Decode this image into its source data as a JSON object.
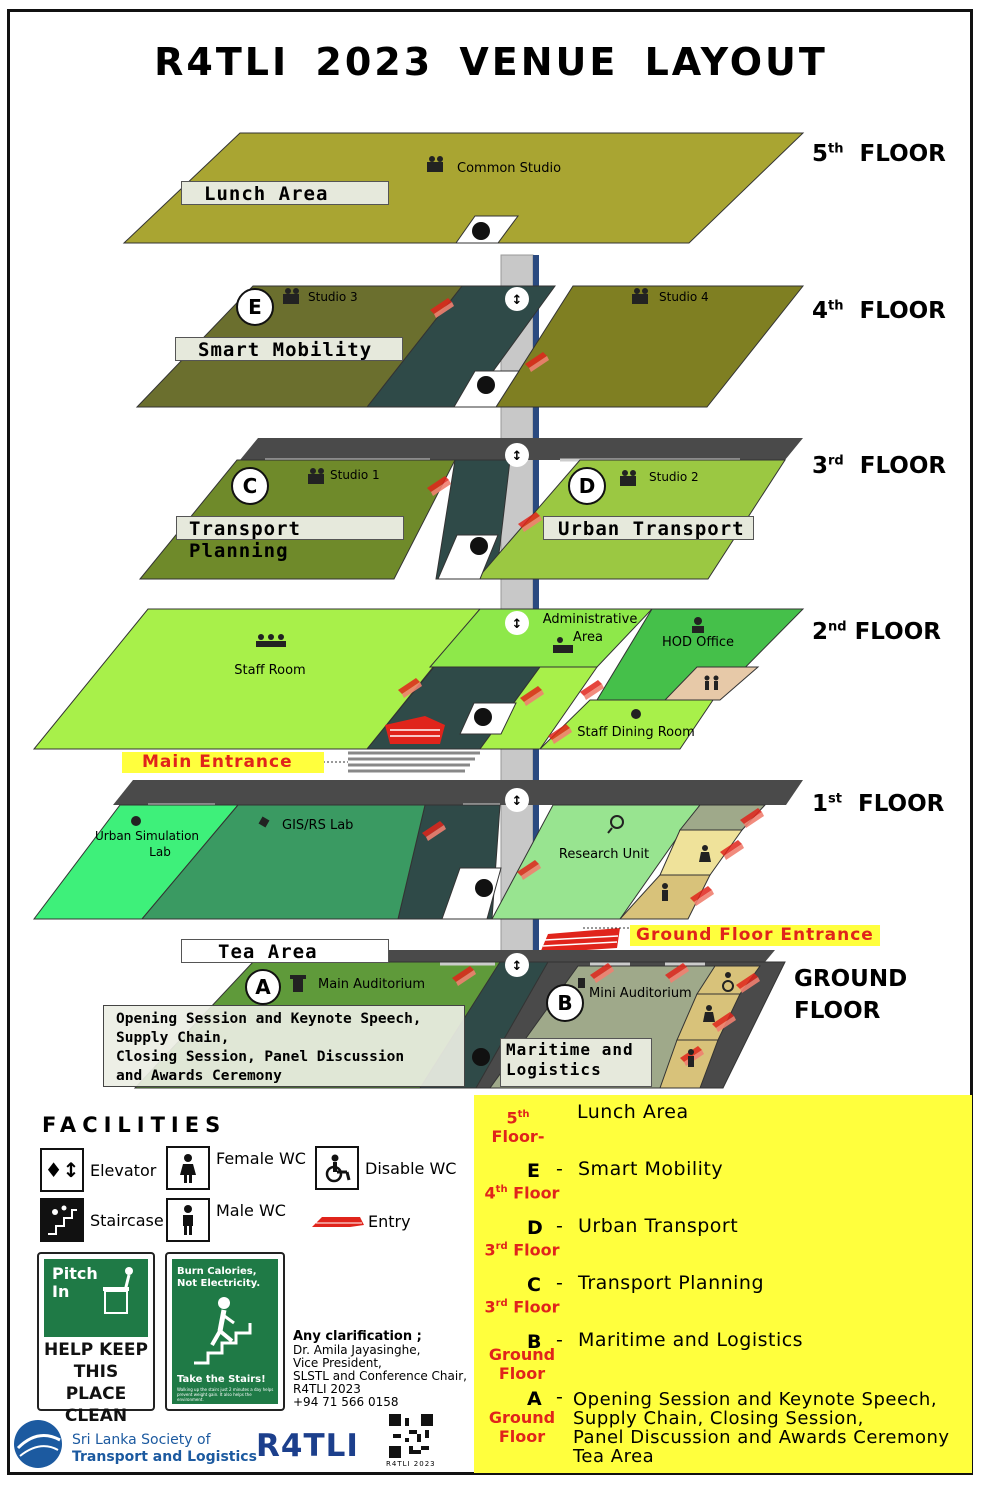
{
  "title": "R4TLI 2023  VENUE  LAYOUT",
  "floors": {
    "f5": {
      "num": "5",
      "sup": "th",
      "word": "FLOOR"
    },
    "f4": {
      "num": "4",
      "sup": "th",
      "word": "FLOOR"
    },
    "f3": {
      "num": "3",
      "sup": "rd",
      "word": "FLOOR"
    },
    "f2": {
      "num": "2",
      "sup": "nd",
      "word": "FLOOR"
    },
    "f1": {
      "num": "1",
      "sup": "st",
      "word": "FLOOR"
    },
    "g": {
      "line1": "GROUND",
      "line2": "FLOOR"
    }
  },
  "rooms": {
    "common_studio": "Common Studio",
    "studio3": "Studio 3",
    "studio4": "Studio 4",
    "studio1": "Studio 1",
    "studio2": "Studio 2",
    "staff_room": "Staff Room",
    "admin_l1": "Administrative",
    "admin_l2": "Area",
    "hod": "HOD Office",
    "dining": "Staff Dining Room",
    "urban_sim_l1": "Urban Simulation",
    "urban_sim_l2": "Lab",
    "gis": "GIS/RS Lab",
    "research": "Research Unit",
    "main_aud": "Main Auditorium",
    "mini_aud": "Mini Auditorium"
  },
  "area_boxes": {
    "lunch": "Lunch Area",
    "smart": "Smart Mobility",
    "transport_planning": "Transport Planning",
    "urban_transport": "Urban Transport",
    "tea": "Tea Area",
    "maritime": "Maritime and\nLogistics",
    "main_desc": "Opening Session and Keynote Speech,\nSupply Chain,\nClosing Session, Panel Discussion\nand Awards Ceremony"
  },
  "markers": {
    "E": "E",
    "C": "C",
    "D": "D",
    "A": "A",
    "B": "B"
  },
  "entrances": {
    "main": "Main  Entrance",
    "ground": "Ground Floor Entrance"
  },
  "facilities": {
    "heading": "FACILITIES",
    "elevator": "Elevator",
    "female": "Female WC",
    "disable": "Disable WC",
    "stair": "Staircase",
    "male": "Male WC",
    "entry": "Entry"
  },
  "signs": {
    "pitch_l1": "Pitch",
    "pitch_l2": "In",
    "pitch_msg": "HELP KEEP\nTHIS PLACE\nCLEAN",
    "burn_l1": "Burn Calories,",
    "burn_l2": "Not Electricity.",
    "burn_take": "Take the Stairs!",
    "burn_fine": "Walking up the stairs just 2 minutes a day helps prevent weight gain. It also helps the environment."
  },
  "contact": {
    "heading": "Any clarification ;",
    "l1": "Dr. Amila Jayasinghe,",
    "l2": "Vice President,",
    "l3": "SLSTL and Conference Chair,",
    "l4": "R4TLI 2023",
    "l5": "+94 71 566 0158"
  },
  "footer": {
    "society_l1": "Sri Lanka Society of",
    "society_l2": "Transport and Logistics",
    "brand": "R4TLI",
    "qr_caption": "R4TLI 2023"
  },
  "legend": [
    {
      "floor_html": "<sup>th</sup>",
      "floor_num": "5",
      "floor_word": "Floor",
      "letter": "",
      "text": "Lunch Area"
    },
    {
      "floor_num": "4",
      "floor_sup": "th",
      "floor_word": "Floor",
      "letter": "E",
      "text": "Smart Mobility"
    },
    {
      "floor_num": "3",
      "floor_sup": "rd",
      "floor_word": "Floor",
      "letter": "D",
      "text": "Urban Transport"
    },
    {
      "floor_num": "3",
      "floor_sup": "rd",
      "floor_word": "Floor",
      "letter": "C",
      "text": "Transport Planning"
    },
    {
      "floor_l1": "Ground",
      "floor_l2": "Floor",
      "letter": "B",
      "text": "Maritime and Logistics"
    },
    {
      "floor_l1": "Ground",
      "floor_l2": "Floor",
      "letter": "A",
      "text": "Opening Session and Keynote Speech,\nSupply Chain, Closing Session,\nPanel Discussion and Awards Ceremony\nTea Area"
    }
  ],
  "colors": {
    "f5": "#a9a532",
    "f4_left": "#6b6f2e",
    "f4_right": "#7f7f22",
    "corridor": "#2f4a48",
    "f3_left": "#6f8a2a",
    "f3_right": "#9bc842",
    "f2_left": "#a8f04a",
    "f2_admin": "#8ee84a",
    "f2_hod": "#45c04a",
    "f1_sim": "#3ef07a",
    "f1_gis": "#3a9a62",
    "f1_research": "#98e490",
    "ground": "#5f9a3a",
    "mini": "#9fa98a",
    "wc": "#d8c27a",
    "elevator": "#c8c8c8",
    "entry": "#e0241b",
    "yellow": "#ffff3d",
    "accent_red": "#e0241b"
  }
}
